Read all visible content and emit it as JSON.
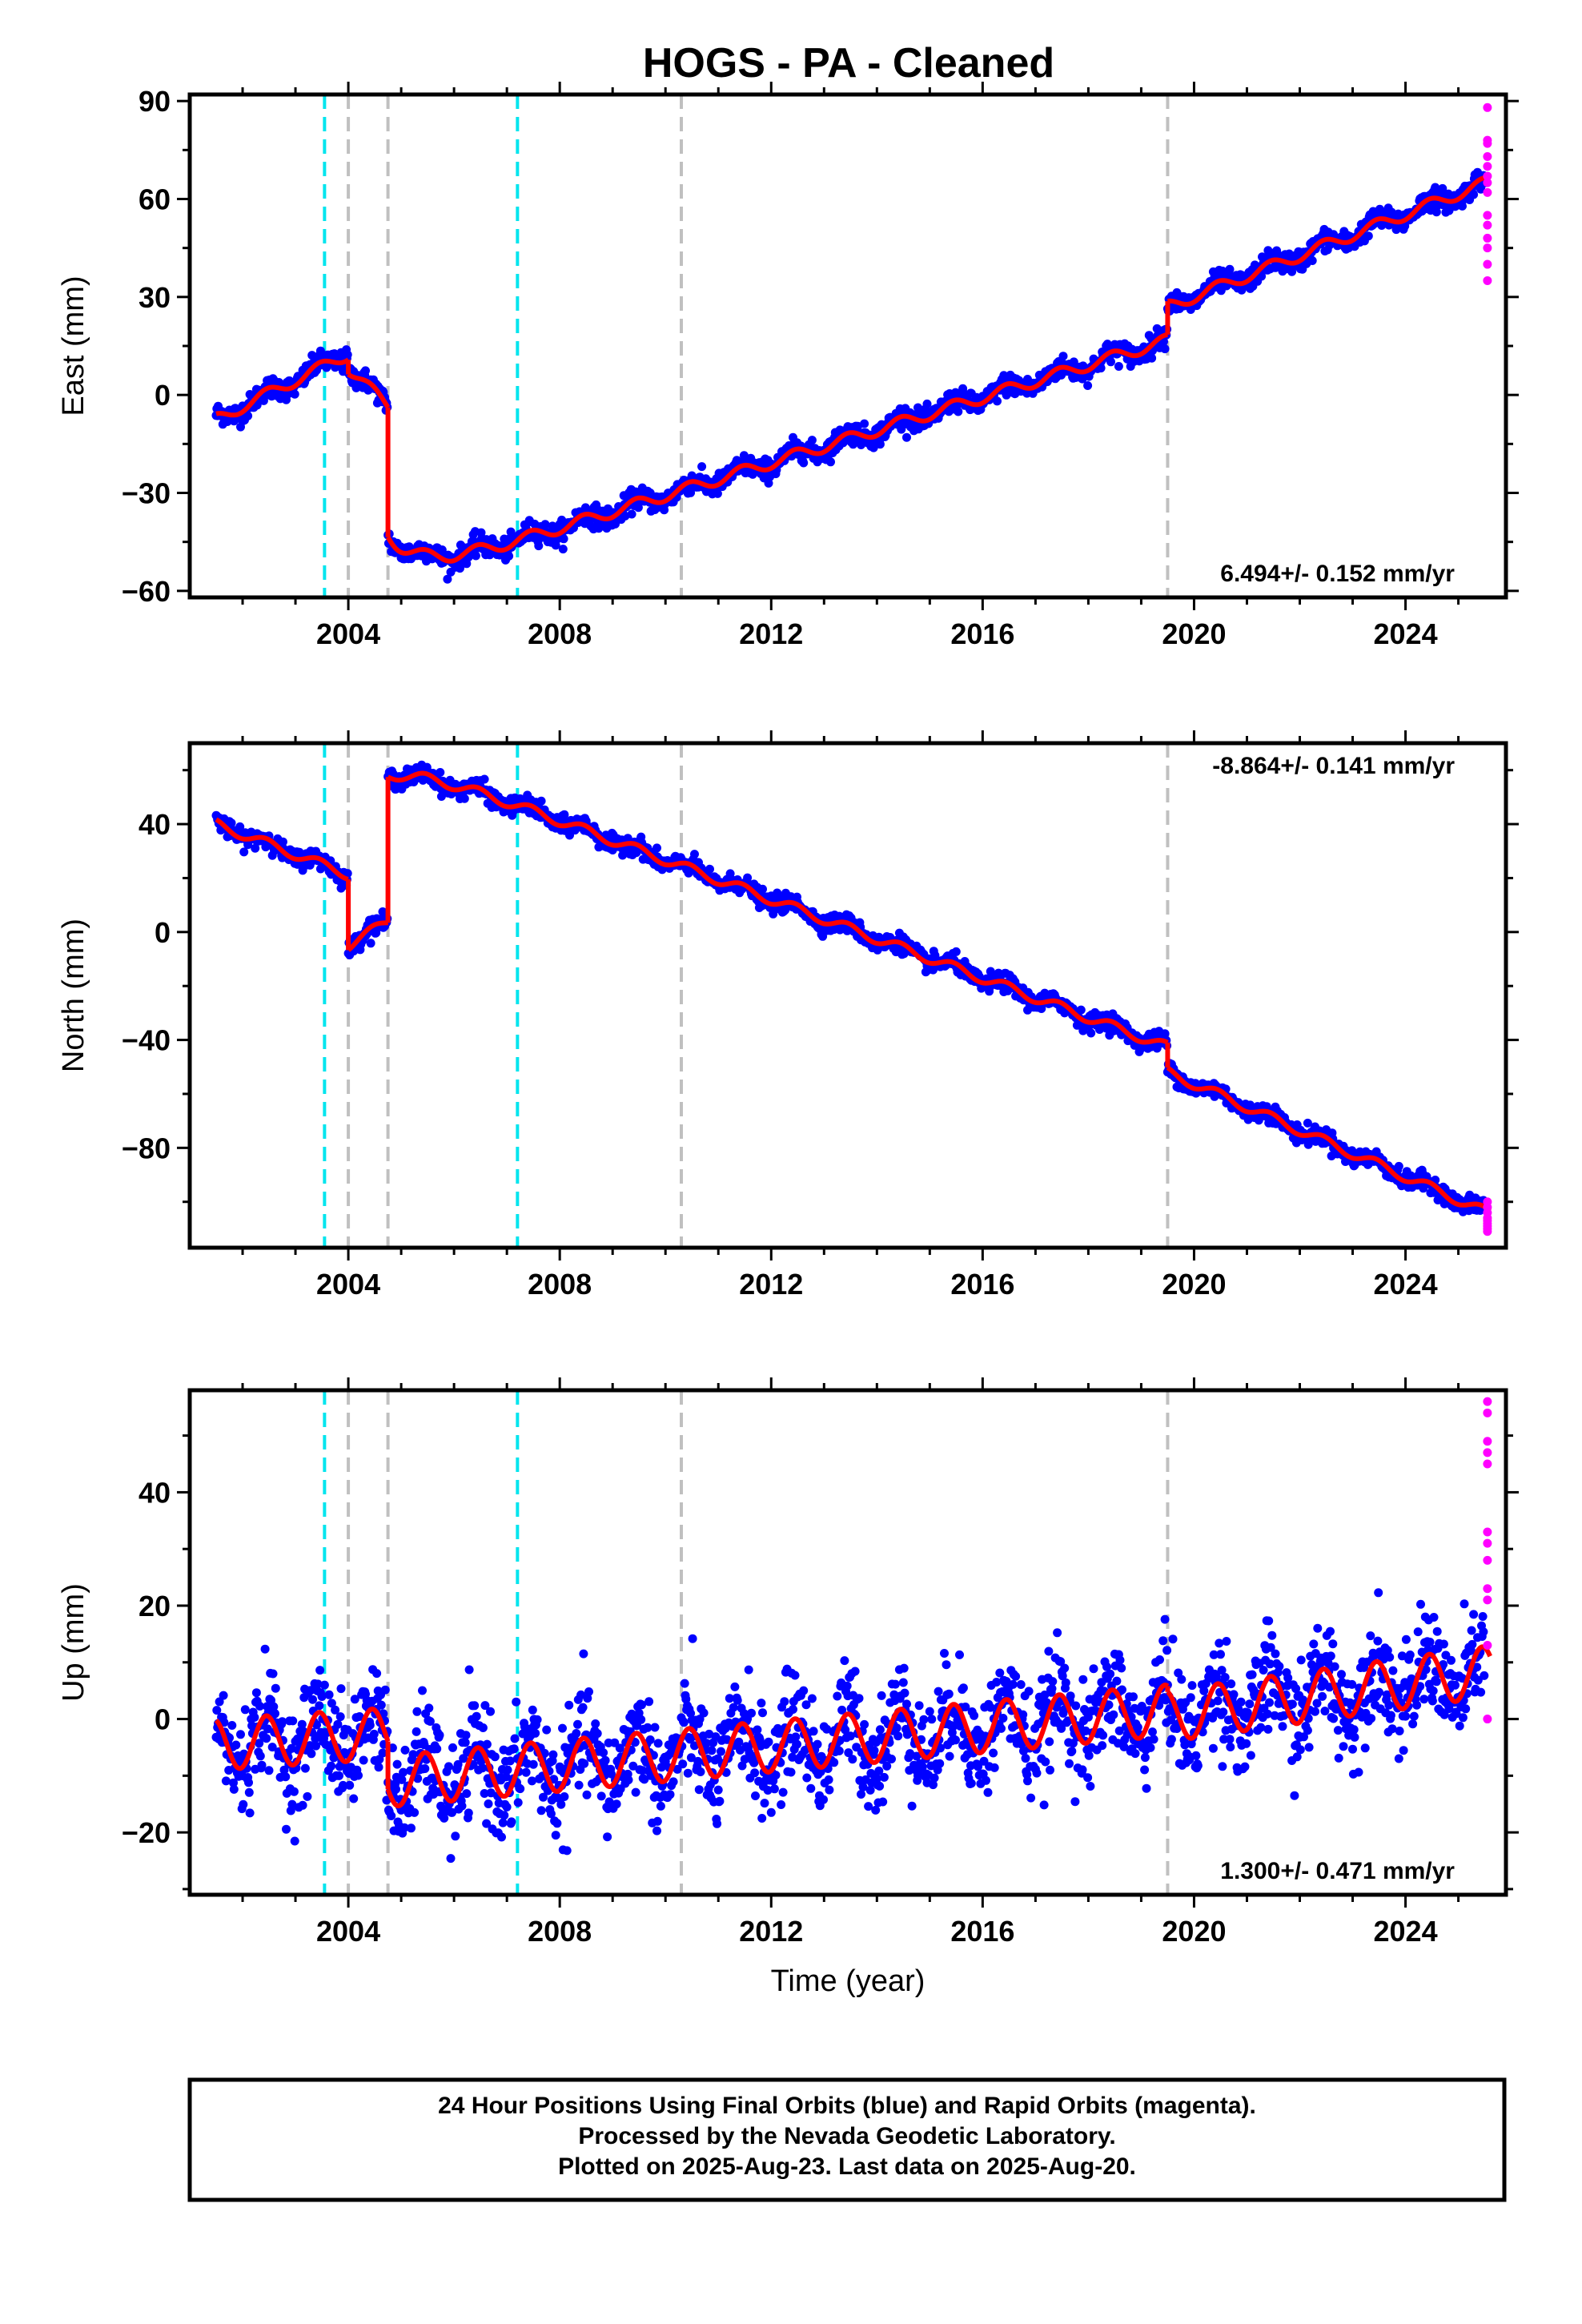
{
  "title": "HOGS  - PA - Cleaned",
  "caption": [
    "24 Hour Positions Using Final Orbits (blue) and Rapid Orbits (magenta).",
    "Processed by the Nevada Geodetic Laboratory.",
    "Plotted on 2025-Aug-23. Last data on 2025-Aug-20."
  ],
  "colors": {
    "final_orbits": "#0000ff",
    "rapid_orbits": "#ff00ff",
    "model_fit": "#ff0000",
    "equipment_change": "#00e5ee",
    "earthquake": "#c0c0c0"
  },
  "chart_data": [
    {
      "type": "scatter",
      "name": "east",
      "ylabel": "East (mm)",
      "xlabel": "",
      "xlim": [
        2001.0,
        2025.9
      ],
      "ylim": [
        -62,
        92
      ],
      "yticks": [
        -60,
        -30,
        0,
        30,
        60,
        90
      ],
      "xticks": [
        2004,
        2008,
        2012,
        2016,
        2020,
        2024
      ],
      "rate_label": "6.494+/- 0.152 mm/yr",
      "rate_position": "bottom-right",
      "grid": false,
      "vertical_lines": {
        "cyan": [
          2003.55,
          2007.2
        ],
        "gray": [
          2004.0,
          2004.75,
          2010.3,
          2019.5
        ]
      },
      "model": {
        "segments": [
          {
            "from": 2001.5,
            "to": 2004.0,
            "start": -7.5,
            "rate": 8.0
          },
          {
            "from": 2004.0,
            "to": 2004.75,
            "start": 8.0,
            "rate": -15.0
          },
          {
            "from": 2004.75,
            "to": 2019.5,
            "start": -43.0,
            "rate": 5.0,
            "post_seismic_amp": -14.0,
            "post_seismic_tau": 0.6
          },
          {
            "from": 2019.5,
            "to": 2025.6,
            "start": 27.0,
            "rate": 6.3
          }
        ],
        "annual_amplitude": 1.8
      },
      "final_scatter": 1.6,
      "rapid_points": [
        88,
        78,
        77,
        73,
        70,
        67,
        65,
        62,
        55,
        52,
        48,
        45,
        40,
        35
      ],
      "rapid_x": 2025.55
    },
    {
      "type": "scatter",
      "name": "north",
      "ylabel": "North (mm)",
      "xlabel": "",
      "xlim": [
        2001.0,
        2025.9
      ],
      "ylim": [
        -117,
        70
      ],
      "yticks": [
        -80,
        -40,
        0,
        40
      ],
      "xticks": [
        2004,
        2008,
        2012,
        2016,
        2020,
        2024
      ],
      "rate_label": "-8.864+/- 0.141 mm/yr",
      "rate_position": "top-right",
      "grid": false,
      "vertical_lines": {
        "cyan": [
          2003.55,
          2007.2
        ],
        "gray": [
          2004.0,
          2004.75,
          2010.3,
          2019.5
        ]
      },
      "model": {
        "segments": [
          {
            "from": 2001.5,
            "to": 2004.0,
            "start": 40.0,
            "rate": -7.5
          },
          {
            "from": 2004.0,
            "to": 2004.75,
            "start": -5.0,
            "rate": 12.0
          },
          {
            "from": 2004.75,
            "to": 2019.5,
            "start": 58.0,
            "rate": -7.3,
            "post_seismic_amp": 7.0,
            "post_seismic_tau": 0.8
          },
          {
            "from": 2019.5,
            "to": 2025.6,
            "start": -52.0,
            "rate": -8.6
          }
        ],
        "annual_amplitude": 1.8
      },
      "final_scatter": 1.6,
      "rapid_points": [
        -100,
        -102,
        -104,
        -106,
        -107,
        -108,
        -109,
        -110,
        -111
      ],
      "rapid_x": 2025.55
    },
    {
      "type": "scatter",
      "name": "up",
      "ylabel": "Up (mm)",
      "xlabel": "Time (year)",
      "xlim": [
        2001.0,
        2025.9
      ],
      "ylim": [
        -31,
        58
      ],
      "yticks": [
        -20,
        0,
        20,
        40
      ],
      "xticks": [
        2004,
        2008,
        2012,
        2016,
        2020,
        2024
      ],
      "rate_label": "1.300+/- 0.471 mm/yr",
      "rate_position": "bottom-right",
      "grid": false,
      "vertical_lines": {
        "cyan": [
          2003.55,
          2007.2
        ],
        "gray": [
          2004.0,
          2004.75,
          2010.3,
          2019.5
        ]
      },
      "model": {
        "segments": [
          {
            "from": 2001.5,
            "to": 2004.75,
            "start": -4.5,
            "rate": 0.6
          },
          {
            "from": 2004.75,
            "to": 2019.5,
            "start": -11.0,
            "rate": 0.85
          },
          {
            "from": 2019.5,
            "to": 2025.6,
            "start": 0.5,
            "rate": 1.3
          }
        ],
        "annual_amplitude": 4.5
      },
      "final_scatter": 4.5,
      "rapid_points": [
        56,
        54,
        49,
        47,
        45,
        33,
        31,
        28,
        23,
        21,
        13,
        0
      ],
      "rapid_x": 2025.55
    }
  ]
}
